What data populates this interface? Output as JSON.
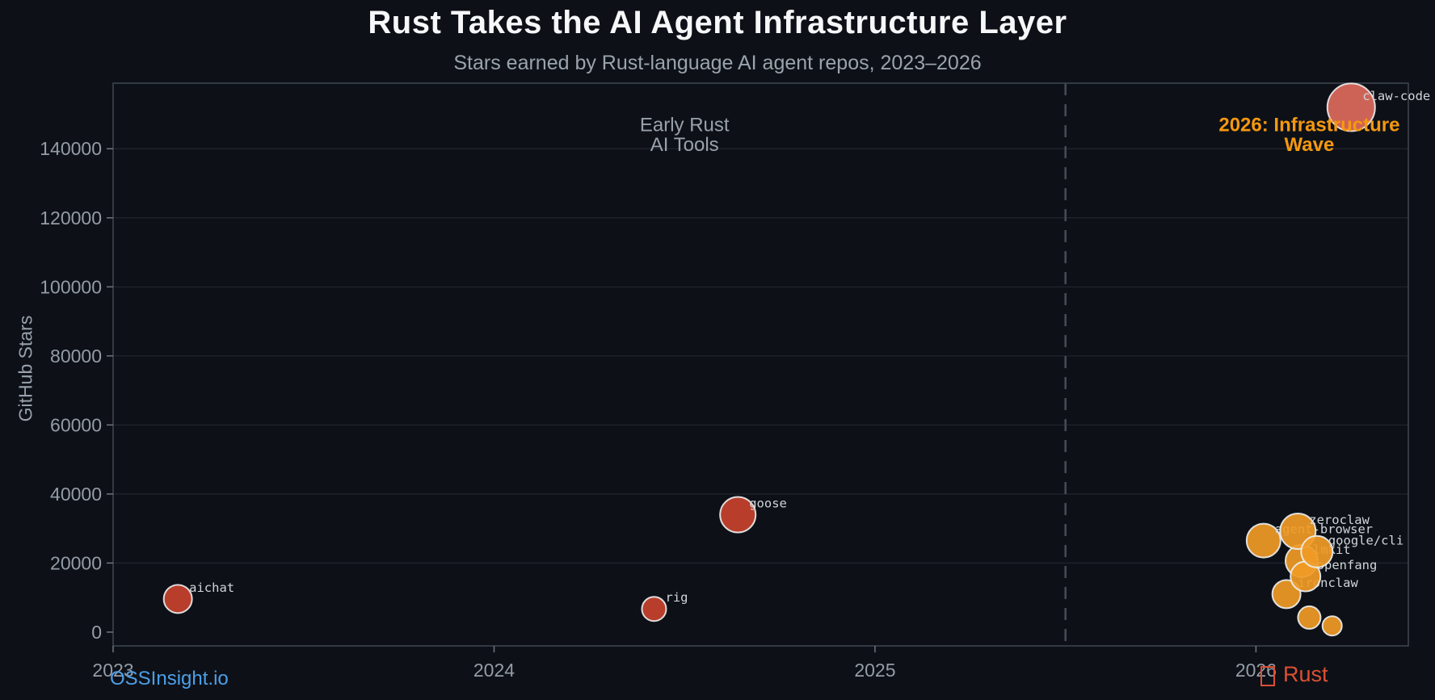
{
  "page": {
    "title": "Rust Takes the AI Agent Infrastructure Layer",
    "subtitle": "Stars earned by Rust-language AI agent repos, 2023–2026"
  },
  "footer": {
    "brand": "OSSInsight.io",
    "language_label": "Rust",
    "language_icon": "crab-emoji-box"
  },
  "colors": {
    "background": "#0d1117",
    "plot_border": "#3d444d",
    "gridline": "#20262e",
    "divider": "#454c55",
    "tick_mark": "#6e7681",
    "tick_text": "#949ca6",
    "bubble_stroke": "#eceff1",
    "bubble_label": "#d0d5da",
    "red": "#c7422e",
    "orange": "#f09b26",
    "salmon": "#dd6a5d",
    "annotation_gray": "#99a1ab",
    "annotation_orange": "#f5980f",
    "footer_blue": "#4c9fe8",
    "footer_rust": "#dc4f33"
  },
  "chart_data": {
    "type": "scatter",
    "title": "Rust Takes the AI Agent Infrastructure Layer",
    "subtitle": "Stars earned by Rust-language AI agent repos, 2023–2026",
    "xlabel": "",
    "ylabel": "GitHub Stars",
    "xlim": [
      2023,
      2026.4
    ],
    "ylim": [
      -4000,
      159000
    ],
    "x_ticks": [
      2023,
      2024,
      2025,
      2026
    ],
    "y_ticks": [
      0,
      20000,
      40000,
      60000,
      80000,
      100000,
      120000,
      140000
    ],
    "grid": "horizontal",
    "legend": "none",
    "divider_x": 2025.5,
    "annotations": [
      {
        "id": "early-era",
        "lines": [
          "Early Rust",
          "AI Tools"
        ],
        "x": 2024.5,
        "y": 147000,
        "color": "#99a1ab",
        "bold": false
      },
      {
        "id": "wave-era",
        "lines": [
          "2026: Infrastructure",
          "Wave"
        ],
        "x": 2026.14,
        "y": 147000,
        "color": "#f5980f",
        "bold": true
      }
    ],
    "points": [
      {
        "name": "aichat",
        "x": 2023.17,
        "stars": 9600,
        "r": 17.5,
        "color": "#c7422e"
      },
      {
        "name": "rig",
        "x": 2024.42,
        "stars": 6700,
        "r": 15,
        "color": "#c7422e"
      },
      {
        "name": "goose",
        "x": 2024.64,
        "stars": 34000,
        "r": 22,
        "color": "#c7422e"
      },
      {
        "name": "agent-browser",
        "x": 2026.02,
        "stars": 26500,
        "r": 21,
        "color": "#f09b26"
      },
      {
        "name": "lmkit",
        "x": 2026.12,
        "stars": 20600,
        "r": 20,
        "color": "#f09b26"
      },
      {
        "name": "ironclaw",
        "x": 2026.08,
        "stars": 11000,
        "r": 17.5,
        "color": "#f09b26"
      },
      {
        "name": "openfang",
        "x": 2026.13,
        "stars": 16100,
        "r": 18.5,
        "color": "#f09b26"
      },
      {
        "name": "zeroclaw",
        "x": 2026.11,
        "stars": 29200,
        "r": 22,
        "color": "#f09b26"
      },
      {
        "name": "google/cli",
        "x": 2026.16,
        "stars": 23300,
        "r": 19.5,
        "color": "#f09b26"
      },
      {
        "name": "",
        "x": 2026.14,
        "stars": 4200,
        "r": 14,
        "color": "#f09b26"
      },
      {
        "name": "",
        "x": 2026.2,
        "stars": 1800,
        "r": 12,
        "color": "#f09b26"
      },
      {
        "name": "claw-code",
        "x": 2026.25,
        "stars": 152000,
        "r": 29.5,
        "color": "#dd6a5d"
      }
    ]
  }
}
